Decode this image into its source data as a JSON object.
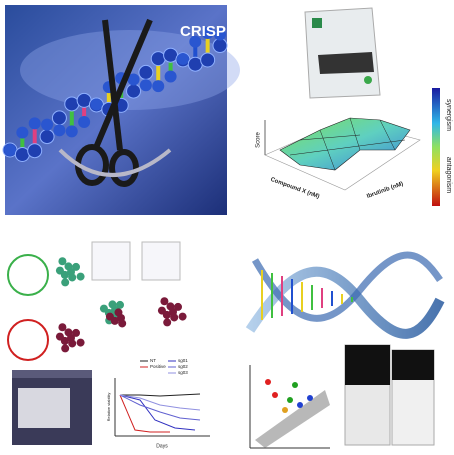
{
  "crispr_panel": {
    "title": "CRISP"
  },
  "synergy_panel": {
    "z_label": "Score",
    "x_label": "Compound X (nM)",
    "y_label": "Ibrutinib (nM)",
    "colorbar_top": "synergism",
    "colorbar_bottom": "antagonism"
  },
  "assay_panel": {
    "legend": [
      "NT",
      "Positive",
      "sg01",
      "sg02",
      "sg03"
    ],
    "x_label": "Days",
    "y_label": "Relative viability"
  }
}
